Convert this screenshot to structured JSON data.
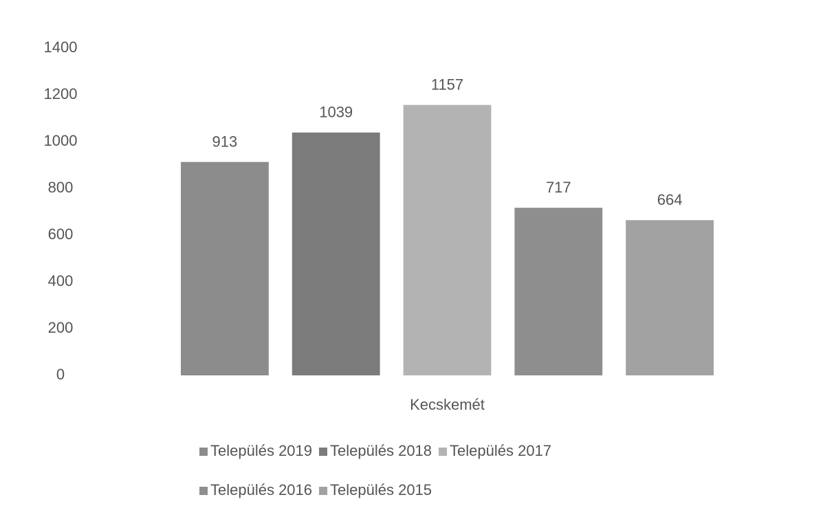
{
  "chart_data": {
    "type": "bar",
    "categories": [
      "Kecskemét"
    ],
    "series": [
      {
        "name": "Település 2019",
        "color": "#8c8c8c",
        "values": [
          913
        ]
      },
      {
        "name": "Település 2018",
        "color": "#7b7b7b",
        "values": [
          1039
        ]
      },
      {
        "name": "Település 2017",
        "color": "#b3b3b3",
        "values": [
          1157
        ]
      },
      {
        "name": "Település 2016",
        "color": "#8e8e8e",
        "values": [
          717
        ]
      },
      {
        "name": "Település 2015",
        "color": "#a2a2a2",
        "values": [
          664
        ]
      }
    ],
    "ylim": [
      0,
      1400
    ],
    "yticks": [
      0,
      200,
      400,
      600,
      800,
      1000,
      1200,
      1400
    ],
    "grid": false,
    "legend": "bottom"
  }
}
